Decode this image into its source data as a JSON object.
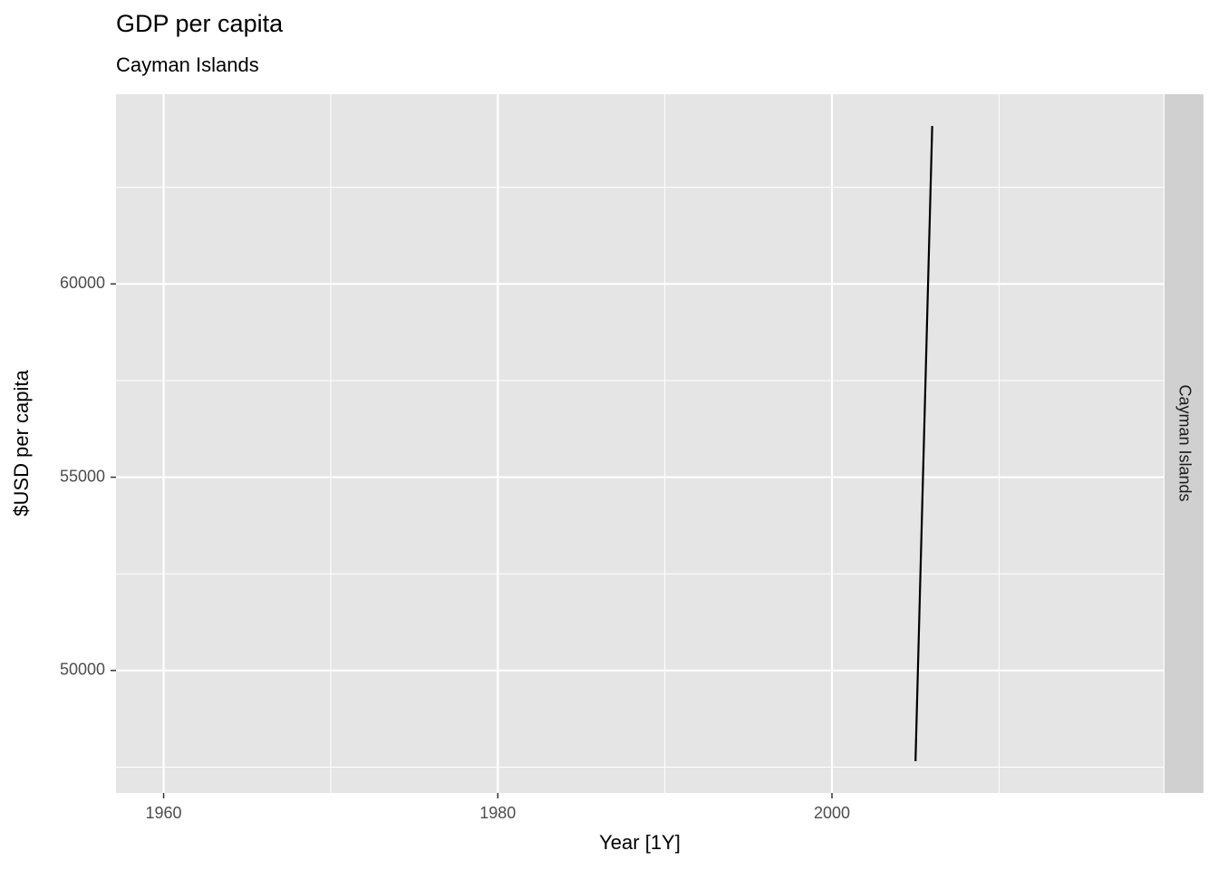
{
  "chart_data": {
    "type": "line",
    "title": "GDP per capita",
    "subtitle": "Cayman Islands",
    "x_label": "Year [1Y]",
    "y_label": "$USD per capita",
    "strip": "Cayman Islands",
    "x": [
      2005,
      2006
    ],
    "series": [
      {
        "color": "#000000",
        "values": [
          47653,
          64085
        ]
      }
    ],
    "xlim": [
      1957.15,
      2019.85
    ],
    "xticks": [
      1960,
      1980,
      2000
    ],
    "xminor": [
      1970,
      1990,
      2010
    ],
    "ylim": [
      46831,
      64907
    ],
    "yticks": [
      50000,
      55000,
      60000
    ],
    "yminor": [
      47500,
      52500,
      57500,
      62500
    ],
    "grid": true
  }
}
